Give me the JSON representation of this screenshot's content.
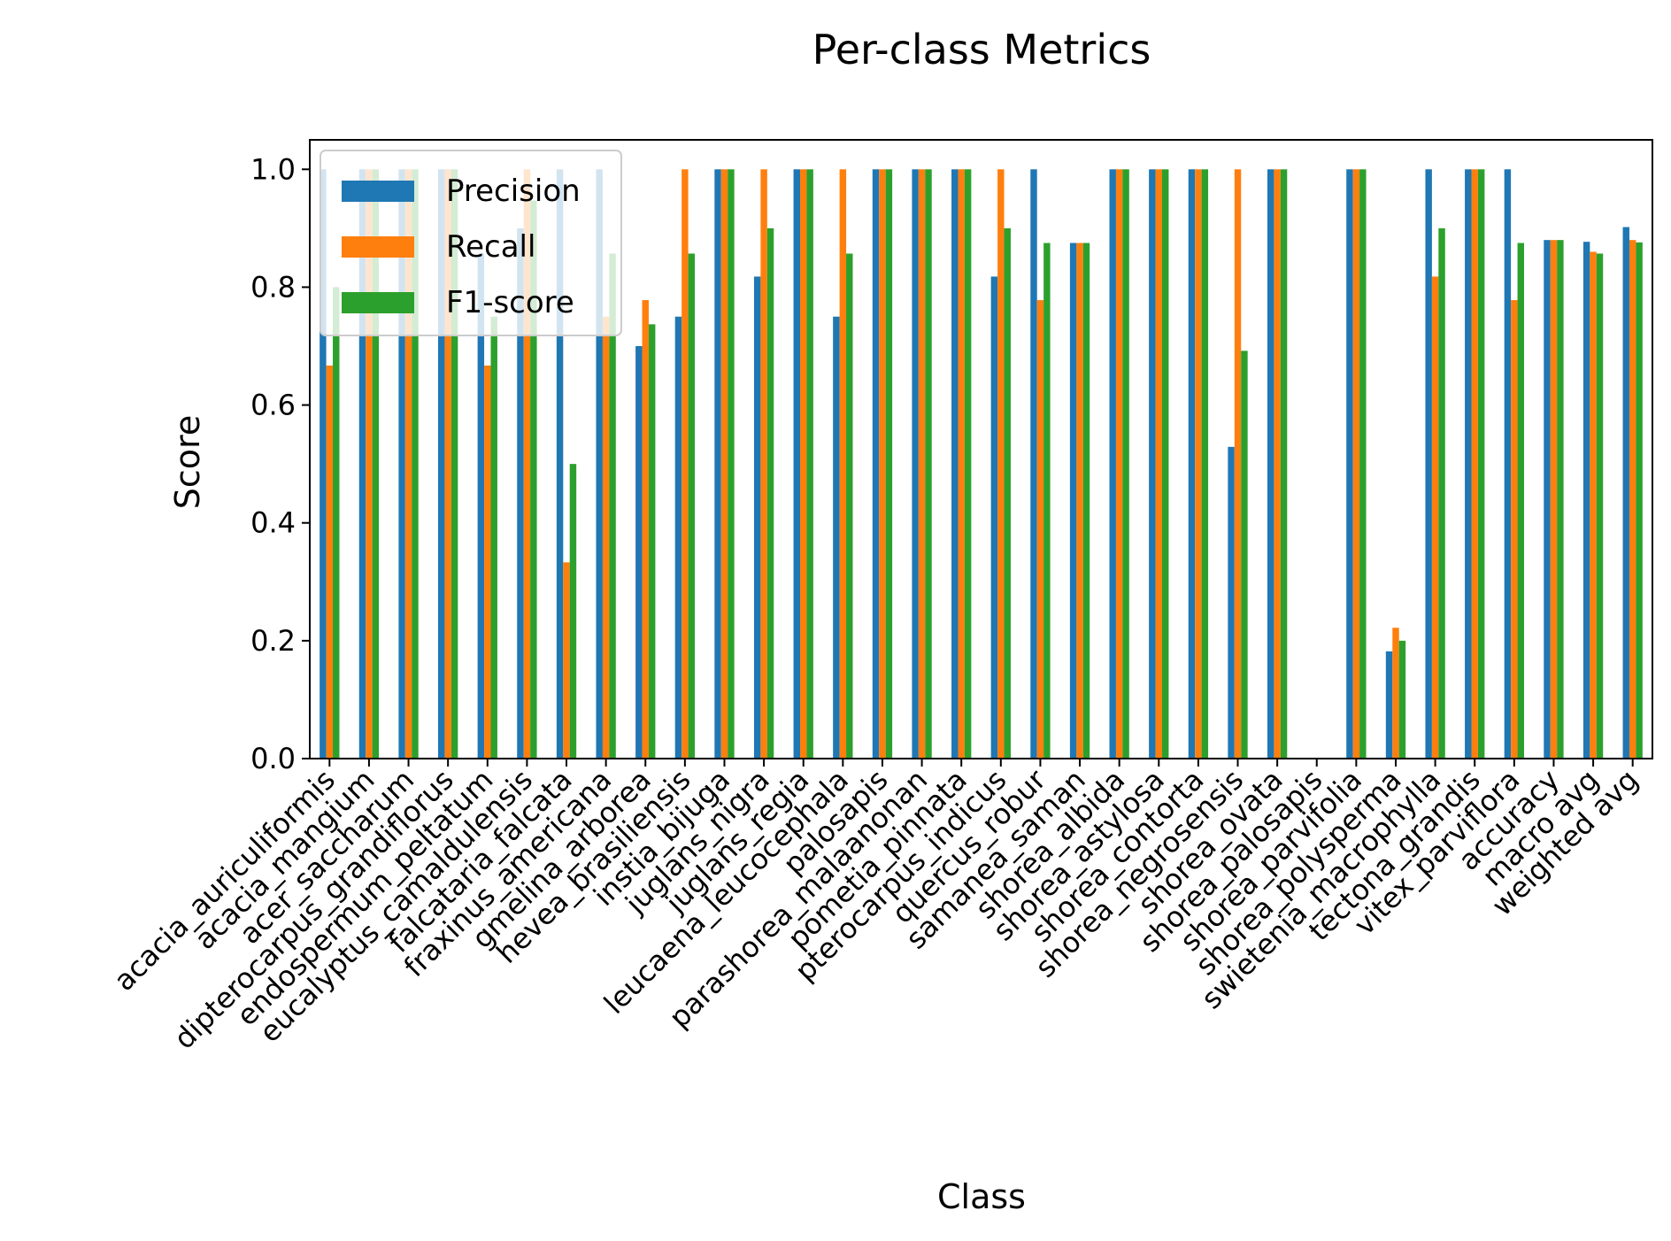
{
  "chart_data": {
    "type": "bar",
    "title": "Per-class Metrics",
    "xlabel": "Class",
    "ylabel": "Score",
    "ylim": [
      0,
      1.05
    ],
    "yticks": [
      "0.0",
      "0.2",
      "0.4",
      "0.6",
      "0.8",
      "1.0"
    ],
    "ytick_values": [
      0,
      0.2,
      0.4,
      0.6,
      0.8,
      1.0
    ],
    "grid": false,
    "legend_position": "top-left",
    "categories": [
      "acacia_auriculiformis",
      "acacia_mangium",
      "acer_saccharum",
      "dipterocarpus_grandiflorus",
      "endospermum_peltatum",
      "eucalyptus_camaldulensis",
      "falcataria_falcata",
      "fraxinus_americana",
      "gmelina_arborea",
      "hevea_brasiliensis",
      "instia_bijuga",
      "juglans_nigra",
      "juglans_regia",
      "leucaena_leucocephala",
      "palosapis",
      "parashorea_malaanonan",
      "pometia_pinnata",
      "pterocarpus_indicus",
      "quercus_robur",
      "samanea_saman",
      "shorea_albida",
      "shorea_astylosa",
      "shorea_contorta",
      "shorea_negrosensis",
      "shorea_ovata",
      "shorea_palosapis",
      "shorea_parvifolia",
      "shorea_polysperma",
      "swietenia_macrophylla",
      "tectona_grandis",
      "vitex_parviflora",
      "accuracy",
      "macro avg",
      "weighted avg"
    ],
    "series": [
      {
        "name": "Precision",
        "color": "#1f77b4",
        "values": [
          1.0,
          1.0,
          1.0,
          1.0,
          0.857,
          0.9,
          1.0,
          1.0,
          0.7,
          0.75,
          1.0,
          0.818,
          1.0,
          0.75,
          1.0,
          1.0,
          1.0,
          0.818,
          1.0,
          0.875,
          1.0,
          1.0,
          1.0,
          0.529,
          1.0,
          0.0,
          1.0,
          0.182,
          1.0,
          1.0,
          1.0,
          0.88,
          0.877,
          0.902
        ]
      },
      {
        "name": "Recall",
        "color": "#ff7f0e",
        "values": [
          0.667,
          1.0,
          1.0,
          1.0,
          0.667,
          1.0,
          0.333,
          0.75,
          0.778,
          1.0,
          1.0,
          1.0,
          1.0,
          1.0,
          1.0,
          1.0,
          1.0,
          1.0,
          0.778,
          0.875,
          1.0,
          1.0,
          1.0,
          1.0,
          1.0,
          0.0,
          1.0,
          0.222,
          0.818,
          1.0,
          0.778,
          0.88,
          0.86,
          0.88
        ]
      },
      {
        "name": "F1-score",
        "color": "#2ca02c",
        "values": [
          0.8,
          1.0,
          1.0,
          1.0,
          0.75,
          0.947,
          0.5,
          0.857,
          0.737,
          0.857,
          1.0,
          0.9,
          1.0,
          0.857,
          1.0,
          1.0,
          1.0,
          0.9,
          0.875,
          0.875,
          1.0,
          1.0,
          1.0,
          0.692,
          1.0,
          0.0,
          1.0,
          0.2,
          0.9,
          1.0,
          0.875,
          0.88,
          0.857,
          0.876
        ]
      }
    ]
  }
}
